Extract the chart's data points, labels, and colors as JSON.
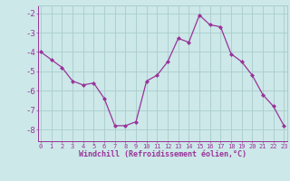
{
  "x": [
    0,
    1,
    2,
    3,
    4,
    5,
    6,
    7,
    8,
    9,
    10,
    11,
    12,
    13,
    14,
    15,
    16,
    17,
    18,
    19,
    20,
    21,
    22,
    23
  ],
  "y": [
    -4.0,
    -4.4,
    -4.8,
    -5.5,
    -5.7,
    -5.6,
    -6.4,
    -7.8,
    -7.8,
    -7.6,
    -5.5,
    -5.2,
    -4.5,
    -3.3,
    -3.5,
    -2.1,
    -2.6,
    -2.7,
    -4.1,
    -4.5,
    -5.2,
    -6.2,
    -6.8,
    -7.8
  ],
  "line_color": "#993399",
  "marker": "D",
  "marker_size": 2,
  "bg_color": "#cce8e8",
  "grid_color": "#aacccc",
  "axis_color": "#993399",
  "tick_color": "#993399",
  "xlabel": "Windchill (Refroidissement éolien,°C)",
  "yticks": [
    -8,
    -7,
    -6,
    -5,
    -4,
    -3,
    -2
  ],
  "xticks": [
    0,
    1,
    2,
    3,
    4,
    5,
    6,
    7,
    8,
    9,
    10,
    11,
    12,
    13,
    14,
    15,
    16,
    17,
    18,
    19,
    20,
    21,
    22,
    23
  ],
  "ylim": [
    -8.6,
    -1.6
  ],
  "xlim": [
    -0.3,
    23.3
  ]
}
